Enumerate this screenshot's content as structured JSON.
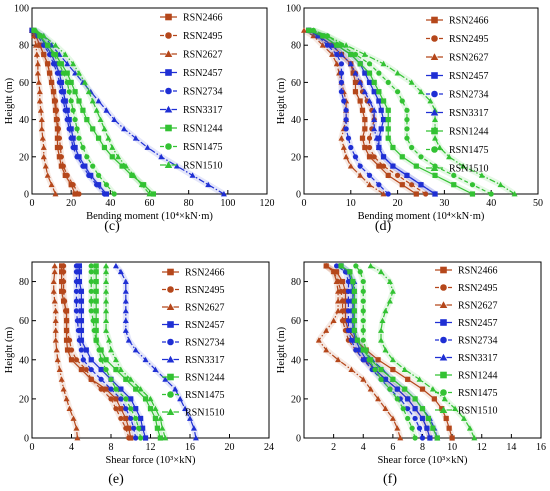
{
  "series_style": [
    {
      "color": "#b5471b",
      "marker": "square",
      "dash": "solid"
    },
    {
      "color": "#b5471b",
      "marker": "circle",
      "dash": "dash"
    },
    {
      "color": "#b5471b",
      "marker": "triangle",
      "dash": "dashdot"
    },
    {
      "color": "#1f2fd4",
      "marker": "square",
      "dash": "solid"
    },
    {
      "color": "#1f2fd4",
      "marker": "circle",
      "dash": "dash"
    },
    {
      "color": "#1f2fd4",
      "marker": "triangle",
      "dash": "dashdot"
    },
    {
      "color": "#33c233",
      "marker": "square",
      "dash": "solid"
    },
    {
      "color": "#33c233",
      "marker": "circle",
      "dash": "dash"
    },
    {
      "color": "#33c233",
      "marker": "triangle",
      "dash": "dashdot"
    }
  ],
  "chart_data": [
    {
      "type": "line",
      "panel_label": "(c)",
      "xlabel": "Bending moment (10⁴×kN·m)",
      "ylabel": "Height (m)",
      "xlim": [
        0,
        120
      ],
      "ylim": [
        0,
        100
      ],
      "xticks": [
        0,
        20,
        40,
        60,
        80,
        100,
        120
      ],
      "yticks": [
        0,
        20,
        40,
        60,
        80,
        100
      ],
      "legend_position": "top-right",
      "y": [
        0,
        5,
        10,
        15,
        20,
        25,
        30,
        35,
        40,
        45,
        50,
        55,
        60,
        65,
        70,
        75,
        80,
        85,
        88
      ],
      "series": [
        {
          "name": "RSN2466",
          "values": [
            22,
            20,
            17,
            15,
            14,
            13,
            13,
            13,
            12.5,
            12,
            11.5,
            11,
            10,
            9,
            8,
            6,
            4,
            2,
            0
          ]
        },
        {
          "name": "RSN2495",
          "values": [
            24,
            21,
            18,
            16,
            15,
            14.5,
            14,
            13.5,
            13,
            12.5,
            12,
            11,
            10,
            9,
            8,
            6,
            4,
            2,
            0
          ]
        },
        {
          "name": "RSN2627",
          "values": [
            12,
            10,
            8,
            7,
            6,
            6,
            5.5,
            5,
            5,
            4.5,
            4,
            4,
            3.5,
            3,
            3,
            2.5,
            2,
            1,
            0
          ]
        },
        {
          "name": "RSN2457",
          "values": [
            38,
            34,
            30,
            27,
            24,
            22,
            21,
            20,
            19,
            18,
            17,
            16,
            15,
            14,
            12,
            10,
            7,
            4,
            0
          ]
        },
        {
          "name": "RSN2734",
          "values": [
            37,
            33,
            29,
            26,
            23,
            21,
            20,
            19,
            18,
            17,
            16,
            15,
            14,
            13,
            11,
            9,
            6,
            3,
            0
          ]
        },
        {
          "name": "RSN3317",
          "values": [
            98,
            90,
            82,
            74,
            66,
            59,
            53,
            47,
            42,
            38,
            34,
            30,
            26,
            22,
            18,
            14,
            10,
            6,
            2
          ]
        },
        {
          "name": "RSN1244",
          "values": [
            62,
            57,
            51,
            46,
            41,
            37,
            34,
            31,
            28,
            26,
            24,
            22,
            20,
            18,
            15,
            12,
            8,
            4,
            1
          ]
        },
        {
          "name": "RSN1475",
          "values": [
            42,
            38,
            34,
            31,
            28,
            26,
            24,
            23,
            22,
            21,
            20,
            19,
            18,
            16,
            14,
            11,
            8,
            4,
            1
          ]
        },
        {
          "name": "RSN1510",
          "values": [
            60,
            56,
            52,
            48,
            44,
            41,
            39,
            37,
            35,
            33,
            31,
            29,
            27,
            24,
            21,
            17,
            12,
            6,
            2
          ]
        }
      ]
    },
    {
      "type": "line",
      "panel_label": "(d)",
      "xlabel": "Bending moment (10⁴×kN·m)",
      "ylabel": "Height (m)",
      "xlim": [
        0,
        50
      ],
      "ylim": [
        0,
        100
      ],
      "xticks": [
        0,
        10,
        20,
        30,
        40,
        50
      ],
      "yticks": [
        0,
        20,
        40,
        60,
        80,
        100
      ],
      "legend_position": "top-right",
      "y": [
        0,
        5,
        10,
        15,
        20,
        25,
        30,
        35,
        40,
        45,
        50,
        55,
        60,
        65,
        70,
        75,
        80,
        85,
        88
      ],
      "series": [
        {
          "name": "RSN2466",
          "values": [
            24,
            21,
            18,
            16,
            14,
            13,
            12.5,
            13,
            13,
            12.5,
            12,
            11,
            11,
            10.5,
            10,
            8,
            6,
            3,
            1
          ]
        },
        {
          "name": "RSN2495",
          "values": [
            26,
            23,
            20,
            17,
            15,
            14,
            14,
            14.5,
            15,
            14.5,
            13.5,
            12.5,
            12,
            11,
            10,
            8,
            6,
            3,
            1
          ]
        },
        {
          "name": "RSN2627",
          "values": [
            17,
            14,
            12,
            10,
            9,
            8.5,
            8,
            8.5,
            9,
            9,
            9,
            8.5,
            8,
            7.5,
            7,
            6,
            4,
            2,
            0
          ]
        },
        {
          "name": "RSN2457",
          "values": [
            28,
            25,
            22,
            19,
            17,
            16,
            16,
            16.5,
            17,
            16.5,
            16,
            15,
            14,
            13,
            12,
            10,
            7,
            4,
            1
          ]
        },
        {
          "name": "RSN2734",
          "values": [
            18,
            16,
            14,
            12,
            11,
            10,
            9.5,
            9,
            9,
            9,
            8.5,
            8,
            8,
            8,
            8,
            7,
            5,
            3,
            1
          ]
        },
        {
          "name": "RSN3317",
          "values": [
            28,
            25,
            22,
            19,
            17,
            16,
            15.5,
            15,
            15,
            15,
            14,
            13,
            12,
            11,
            10,
            8,
            6,
            3,
            1
          ]
        },
        {
          "name": "RSN1244",
          "values": [
            36,
            32,
            28,
            24,
            21,
            19,
            18,
            18,
            18,
            18,
            17,
            16,
            15,
            14,
            12,
            10,
            7,
            4,
            1
          ]
        },
        {
          "name": "RSN1475",
          "values": [
            40,
            36,
            32,
            28,
            25,
            23,
            22,
            22,
            22,
            22,
            21,
            20,
            18,
            16,
            14,
            11,
            8,
            5,
            2
          ]
        },
        {
          "name": "RSN1510",
          "values": [
            45,
            42,
            38,
            34,
            31,
            29,
            28,
            28,
            28,
            28,
            27,
            25,
            23,
            20,
            17,
            13,
            9,
            5,
            2
          ]
        }
      ]
    },
    {
      "type": "line",
      "panel_label": "(e)",
      "xlabel": "Shear force (10³×kN)",
      "ylabel": "Height (m)",
      "xlim": [
        0,
        24
      ],
      "ylim": [
        0,
        90
      ],
      "xticks": [
        0,
        4,
        8,
        12,
        16,
        20,
        24
      ],
      "yticks": [
        0,
        20,
        40,
        60,
        80
      ],
      "legend_position": "top-right",
      "y": [
        0,
        5,
        10,
        15,
        20,
        25,
        30,
        35,
        40,
        45,
        50,
        55,
        60,
        65,
        70,
        75,
        80,
        85,
        88
      ],
      "series": [
        {
          "name": "RSN2466",
          "values": [
            10,
            9.8,
            9.5,
            9,
            8.5,
            7.5,
            6,
            5,
            4,
            3.6,
            3.5,
            3.5,
            3.5,
            3.5,
            3.2,
            3,
            3,
            3,
            3
          ]
        },
        {
          "name": "RSN2495",
          "values": [
            9.8,
            9.5,
            9,
            8.5,
            8,
            7,
            6,
            5.5,
            4.5,
            4,
            3.8,
            3.5,
            3.5,
            3.4,
            3.3,
            3.2,
            3.2,
            3.2,
            3.2
          ]
        },
        {
          "name": "RSN2627",
          "values": [
            4.6,
            4.5,
            4.2,
            3.8,
            3.5,
            3.2,
            3,
            2.8,
            2.6,
            2.5,
            2.4,
            2.4,
            2.4,
            2.4,
            2.3,
            2.2,
            2.2,
            2.3,
            2.3
          ]
        },
        {
          "name": "RSN2457",
          "values": [
            11.5,
            11.2,
            11,
            10.5,
            10,
            9,
            8,
            7,
            6,
            5.5,
            5,
            5,
            5,
            5,
            5,
            5,
            4.8,
            4.8,
            4.8
          ]
        },
        {
          "name": "RSN2734",
          "values": [
            10.5,
            10.3,
            10,
            9.5,
            9,
            8,
            7,
            6,
            5.2,
            5,
            4.8,
            4.7,
            4.6,
            4.5,
            4.5,
            4.5,
            4.5,
            4.5,
            4.5
          ]
        },
        {
          "name": "RSN3317",
          "values": [
            16.6,
            16.4,
            16,
            15.5,
            15,
            14.5,
            13.5,
            12.5,
            11.5,
            10.5,
            9.8,
            9.5,
            9.5,
            9.5,
            9.5,
            9.5,
            9.5,
            9,
            8.5
          ]
        },
        {
          "name": "RSN1244",
          "values": [
            13,
            12.7,
            12.5,
            12,
            11.5,
            10.5,
            9.5,
            8.5,
            7.5,
            7,
            6.5,
            6.5,
            6.5,
            6.5,
            6.5,
            6.5,
            6.5,
            6.5,
            6.5
          ]
        },
        {
          "name": "RSN1475",
          "values": [
            11,
            10.8,
            10.5,
            10,
            9.5,
            8.5,
            8,
            7.5,
            7,
            6.8,
            6.5,
            6.3,
            6.2,
            6,
            6,
            6,
            6,
            6,
            6
          ]
        },
        {
          "name": "RSN1510",
          "values": [
            13.5,
            13.2,
            13,
            12.5,
            12,
            11,
            10,
            9,
            8.5,
            8,
            7.8,
            7.5,
            7.5,
            7.5,
            7.5,
            7.5,
            7.5,
            7.5,
            7.5
          ]
        }
      ]
    },
    {
      "type": "line",
      "panel_label": "(f)",
      "xlabel": "Shear force (10³×kN)",
      "ylabel": "Height (m)",
      "xlim": [
        0,
        16
      ],
      "ylim": [
        0,
        90
      ],
      "xticks": [
        2,
        4,
        6,
        8,
        10,
        12,
        14,
        16
      ],
      "yticks": [
        0,
        20,
        40,
        60,
        80
      ],
      "legend_position": "top-right",
      "y": [
        0,
        5,
        10,
        15,
        20,
        25,
        30,
        35,
        40,
        45,
        50,
        55,
        60,
        65,
        70,
        75,
        80,
        85,
        88
      ],
      "series": [
        {
          "name": "RSN2466",
          "values": [
            10,
            9.8,
            9.6,
            9.3,
            8.8,
            8,
            7,
            6,
            5,
            4.2,
            3.5,
            3,
            2.8,
            2.8,
            2.8,
            2.8,
            2.6,
            2.2,
            1.5
          ]
        },
        {
          "name": "RSN2495",
          "values": [
            8.5,
            8.3,
            8,
            7.5,
            7,
            6.3,
            5.5,
            4.8,
            4,
            3.5,
            3,
            2.8,
            2.6,
            2.6,
            2.6,
            2.5,
            2.3,
            2,
            1.5
          ]
        },
        {
          "name": "RSN2627",
          "values": [
            6.5,
            6.3,
            6,
            5.5,
            5,
            4.5,
            4,
            3.2,
            2.3,
            1.5,
            1,
            1.5,
            2,
            2.3,
            2.3,
            2.3,
            2.2,
            2,
            1.5
          ]
        },
        {
          "name": "RSN2457",
          "values": [
            8.5,
            8.3,
            8,
            7.5,
            7,
            6.3,
            5.5,
            4.8,
            4.2,
            3.8,
            3.5,
            3.3,
            3.3,
            3.3,
            3.3,
            3.3,
            3.2,
            3,
            2.5
          ]
        },
        {
          "name": "RSN2734",
          "values": [
            8,
            7.8,
            7.5,
            7,
            6.5,
            5.8,
            5.2,
            4.6,
            4,
            3.5,
            3.2,
            3,
            3,
            3,
            3,
            3,
            3,
            2.8,
            2.2
          ]
        },
        {
          "name": "RSN3317",
          "values": [
            9,
            8.8,
            8.5,
            8,
            7.5,
            6.8,
            6,
            5.3,
            4.6,
            4,
            3.6,
            3.4,
            3.4,
            3.4,
            3.4,
            3.4,
            3.4,
            3,
            2.5
          ]
        },
        {
          "name": "RSN1244",
          "values": [
            9,
            8.7,
            8.4,
            8,
            7.5,
            6.8,
            6,
            5.2,
            4.5,
            4,
            3.6,
            3.4,
            3.4,
            3.4,
            3.4,
            3.4,
            3.3,
            3.1,
            2.5
          ]
        },
        {
          "name": "RSN1475",
          "values": [
            7.5,
            7.3,
            7,
            6.7,
            6.3,
            5.8,
            5.2,
            4.8,
            4.4,
            4.2,
            4,
            4,
            4,
            4,
            4,
            4,
            4,
            3.8,
            3.5
          ]
        },
        {
          "name": "RSN1510",
          "values": [
            11.5,
            11.2,
            10.8,
            10.2,
            9.5,
            8.7,
            7.8,
            6.8,
            6,
            5.5,
            5.2,
            5.2,
            5.3,
            5.5,
            5.8,
            6,
            5.8,
            5.2,
            4.5
          ]
        }
      ]
    }
  ]
}
